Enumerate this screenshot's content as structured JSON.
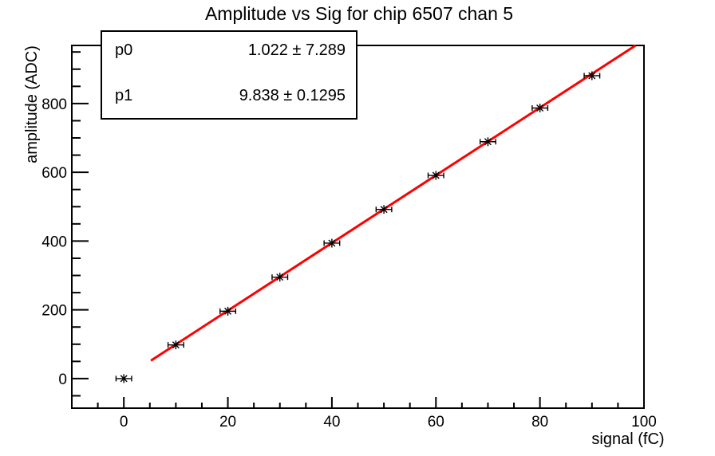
{
  "title": "Amplitude vs Sig for chip 6507 chan 5",
  "stats_box": {
    "rows": [
      {
        "label": "p0",
        "value": "1.022 ± 7.289"
      },
      {
        "label": "p1",
        "value": "9.838 ± 0.1295"
      }
    ]
  },
  "chart_data": {
    "type": "scatter",
    "title": "Amplitude vs Sig for chip 6507 chan 5",
    "xlabel": "signal (fC)",
    "ylabel": "amplitude (ADC)",
    "xlim": [
      -10,
      100
    ],
    "ylim": [
      -86,
      969
    ],
    "x_major_ticks": [
      0,
      20,
      40,
      60,
      80,
      100
    ],
    "x_minor_step": 5,
    "y_major_ticks": [
      0,
      200,
      400,
      600,
      800
    ],
    "y_minor_step": 50,
    "grid": false,
    "legend_position": "stats-box-top-left",
    "marker": "asterisk",
    "marker_color": "#000000",
    "points": {
      "x": [
        0,
        10,
        20,
        30,
        40,
        50,
        60,
        70,
        80,
        90
      ],
      "y": [
        0,
        98,
        196,
        295,
        394,
        492,
        591,
        689,
        787,
        881
      ],
      "xerr": 1.5
    },
    "fit": {
      "name": "pol1",
      "p0": 1.022,
      "p1": 9.838,
      "x_start": 5.2,
      "x_end": 98.4,
      "color": "#ff0000"
    }
  },
  "colors": {
    "fit_line": "#ff0000",
    "axis": "#000000",
    "background": "#ffffff"
  }
}
